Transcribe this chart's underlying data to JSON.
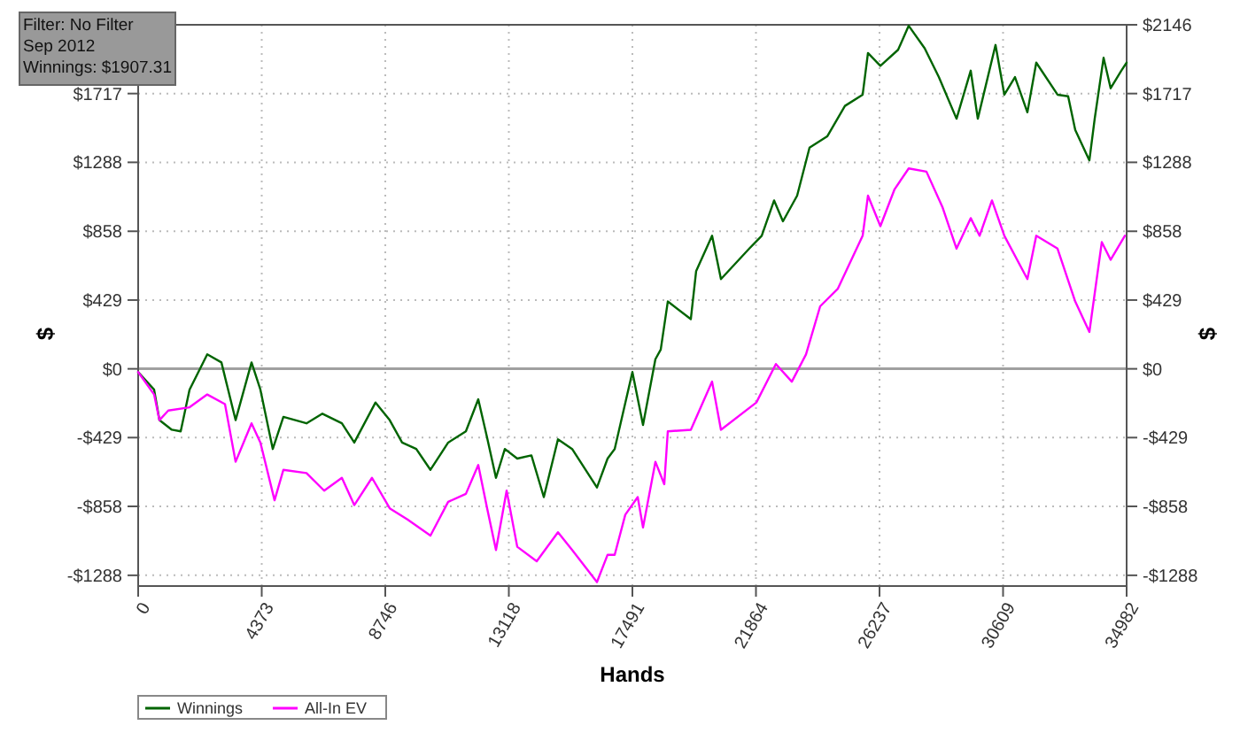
{
  "chart_data": {
    "type": "line",
    "xlabel": "Hands",
    "ylabel": "$",
    "y2label": "$",
    "annotations": [
      "Filter: No Filter",
      "Sep 2012",
      "Winnings: $1907.31"
    ],
    "xlim": [
      0,
      34982
    ],
    "xticks": [
      0,
      4373,
      8746,
      13118,
      17491,
      21864,
      26237,
      30609,
      34982
    ],
    "ylim": [
      -1355,
      2146
    ],
    "yticks": [
      {
        "value": -1288,
        "label": "-$1288"
      },
      {
        "value": -858,
        "label": "-$858"
      },
      {
        "value": -429,
        "label": "-$429"
      },
      {
        "value": 0,
        "label": "$0"
      },
      {
        "value": 429,
        "label": "$429"
      },
      {
        "value": 858,
        "label": "$858"
      },
      {
        "value": 1288,
        "label": "$1288"
      },
      {
        "value": 1717,
        "label": "$1717"
      }
    ],
    "y2lim": [
      -1355,
      2146
    ],
    "y2ticks": [
      {
        "value": -1288,
        "label": "-$1288"
      },
      {
        "value": -858,
        "label": "-$858"
      },
      {
        "value": -429,
        "label": "-$429"
      },
      {
        "value": 0,
        "label": "$0"
      },
      {
        "value": 429,
        "label": "$429"
      },
      {
        "value": 858,
        "label": "$858"
      },
      {
        "value": 1288,
        "label": "$1288"
      },
      {
        "value": 1717,
        "label": "$1717"
      },
      {
        "value": 2146,
        "label": "$2146"
      }
    ],
    "grid": true,
    "legend": "bottom",
    "line_style": "solid",
    "ref_lines": [
      {
        "axis": "y",
        "value": 0,
        "color": "#a0a0a0"
      }
    ],
    "series": [
      {
        "name": "Winnings",
        "color": "#006400",
        "x": [
          0,
          564,
          752,
          1191,
          1505,
          1818,
          2445,
          2946,
          3448,
          4012,
          4326,
          4764,
          5140,
          5956,
          6520,
          7209,
          7648,
          8400,
          8902,
          9341,
          9842,
          10344,
          10971,
          11598,
          12036,
          12350,
          12663,
          12977,
          13416,
          13917,
          14356,
          14857,
          15359,
          16237,
          16613,
          16864,
          17491,
          17867,
          18305,
          18494,
          18744,
          19559,
          19747,
          20311,
          20625,
          21628,
          22067,
          22506,
          22819,
          23321,
          23760,
          24386,
          25013,
          25640,
          25828,
          26267,
          26894,
          27270,
          27834,
          28336,
          28962,
          29464,
          29715,
          30342,
          30655,
          31031,
          31470,
          31784,
          32536,
          32912,
          33163,
          33664,
          33852,
          34166,
          34417,
          34793,
          34982
        ],
        "values": [
          -20,
          -130,
          -320,
          -380,
          -390,
          -130,
          90,
          40,
          -320,
          40,
          -130,
          -500,
          -300,
          -340,
          -280,
          -340,
          -460,
          -210,
          -320,
          -460,
          -500,
          -630,
          -460,
          -390,
          -190,
          -430,
          -680,
          -500,
          -560,
          -540,
          -800,
          -440,
          -500,
          -740,
          -560,
          -500,
          -20,
          -350,
          60,
          120,
          420,
          310,
          610,
          830,
          560,
          750,
          830,
          1050,
          920,
          1080,
          1380,
          1450,
          1640,
          1710,
          1970,
          1890,
          1990,
          2140,
          2000,
          1820,
          1560,
          1860,
          1560,
          2020,
          1710,
          1820,
          1600,
          1910,
          1710,
          1700,
          1490,
          1300,
          1560,
          1940,
          1750,
          1860,
          1910
        ]
      },
      {
        "name": "All-In EV",
        "color": "#ff00ff",
        "x": [
          0,
          564,
          752,
          1066,
          1818,
          2445,
          3072,
          3448,
          4012,
          4326,
          4827,
          5140,
          5956,
          6582,
          7209,
          7648,
          8275,
          8902,
          9529,
          10344,
          10971,
          11598,
          12036,
          12350,
          12663,
          13040,
          13416,
          14105,
          14857,
          15359,
          16237,
          16613,
          16864,
          17240,
          17679,
          17867,
          18305,
          18619,
          18744,
          19559,
          20311,
          20625,
          21879,
          22569,
          23133,
          23634,
          24136,
          24763,
          25640,
          25828,
          26267,
          26769,
          27270,
          27897,
          28461,
          28962,
          29464,
          29778,
          30216,
          30655,
          31470,
          31784,
          32536,
          33163,
          33664,
          34103,
          34417,
          34919
        ],
        "values": [
          -20,
          -160,
          -320,
          -260,
          -240,
          -160,
          -220,
          -580,
          -340,
          -460,
          -820,
          -630,
          -650,
          -760,
          -680,
          -850,
          -680,
          -870,
          -940,
          -1040,
          -830,
          -780,
          -600,
          -870,
          -1130,
          -760,
          -1110,
          -1200,
          -1020,
          -1130,
          -1330,
          -1160,
          -1160,
          -910,
          -800,
          -990,
          -580,
          -720,
          -390,
          -380,
          -80,
          -380,
          -210,
          30,
          -80,
          90,
          390,
          500,
          830,
          1080,
          890,
          1120,
          1250,
          1230,
          1010,
          750,
          940,
          830,
          1050,
          830,
          560,
          830,
          750,
          420,
          230,
          790,
          680,
          830
        ]
      }
    ]
  }
}
